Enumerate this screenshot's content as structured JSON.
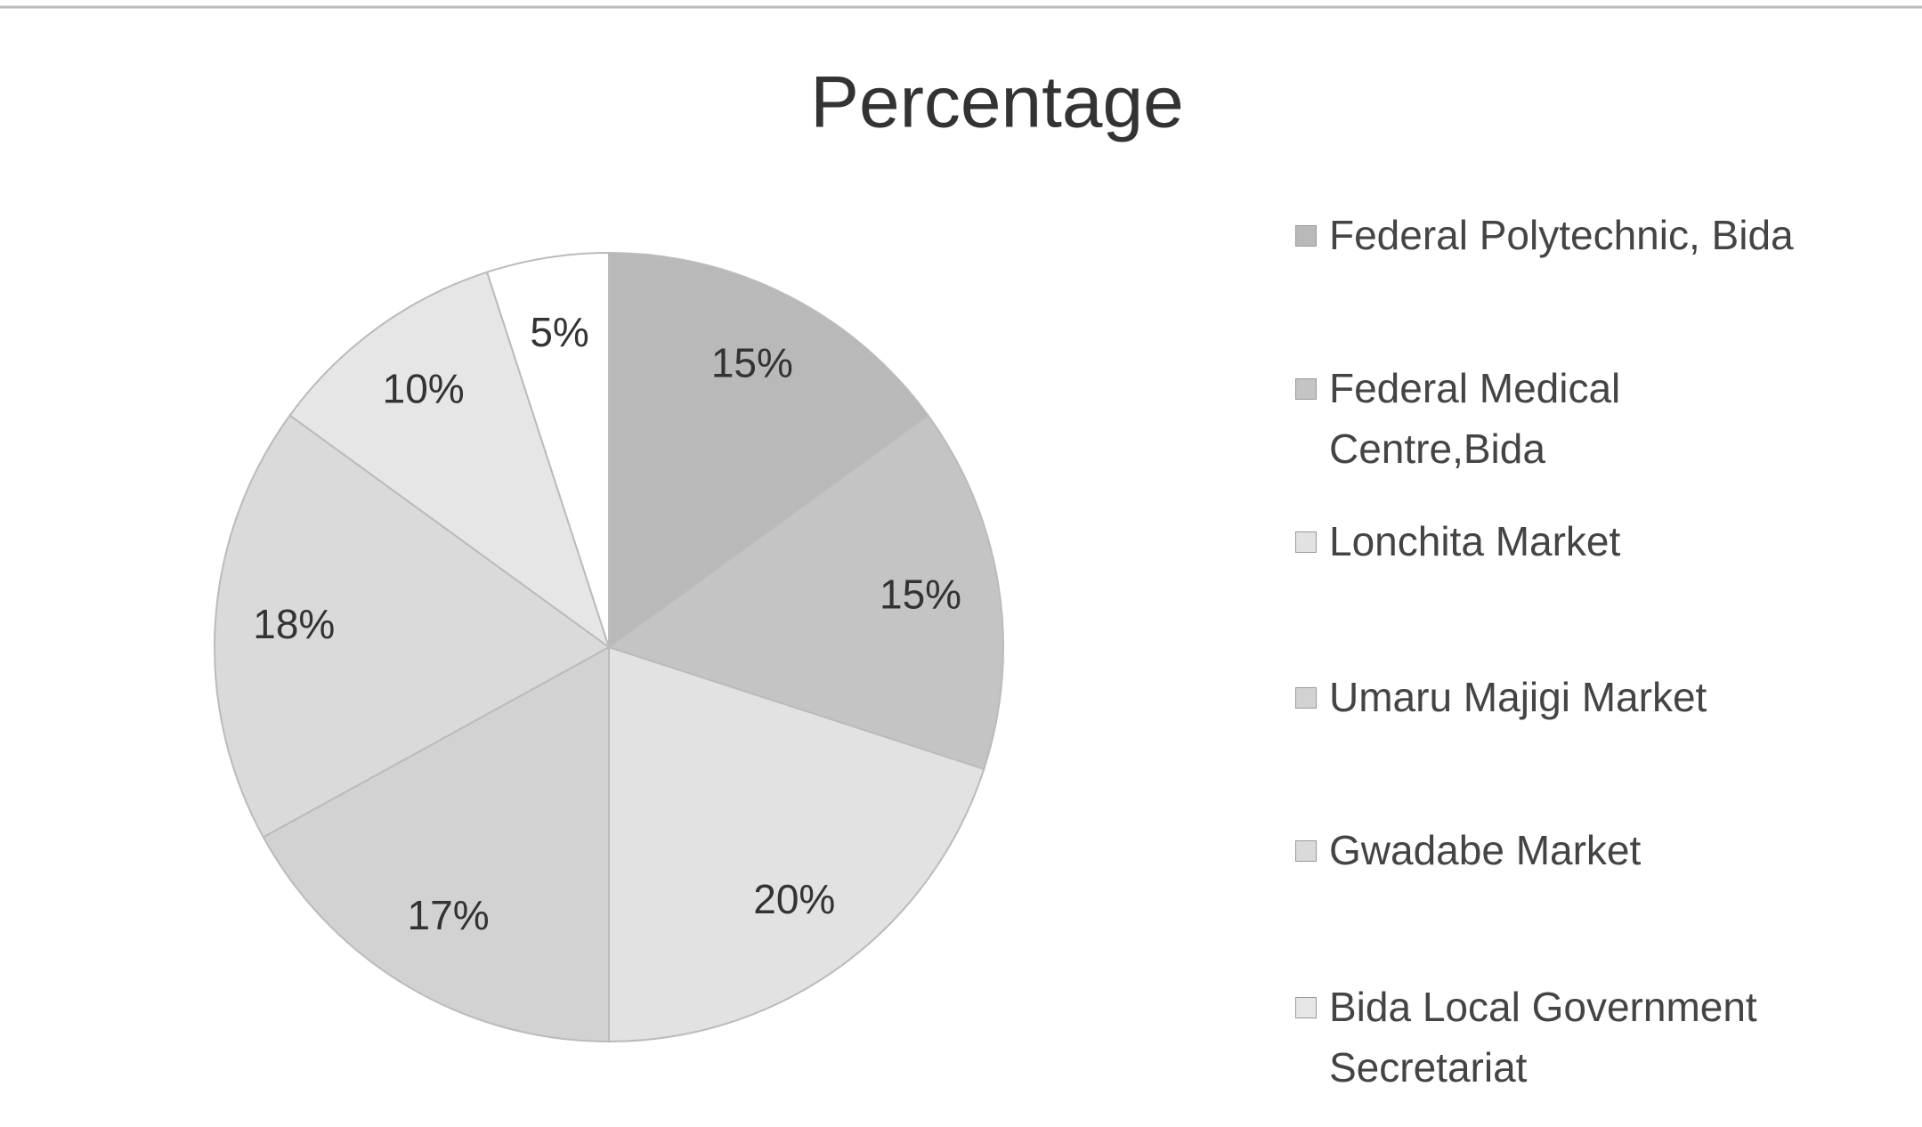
{
  "chart_data": {
    "type": "pie",
    "title": "Percentage",
    "categories": [
      "Federal Polytechnic, Bida",
      "Federal Medical Centre,Bida",
      "Lonchita Market",
      "Umaru Majigi Market",
      "Gwadabe Market",
      "Bida Local Government Secretariat",
      null
    ],
    "values": [
      15,
      15,
      20,
      17,
      18,
      10,
      5
    ],
    "value_labels": [
      "15%",
      "15%",
      "20%",
      "17%",
      "18%",
      "10%",
      "5%"
    ],
    "colors": [
      "#b9b9b9",
      "#c4c4c4",
      "#e2e2e2",
      "#d2d2d2",
      "#dadada",
      "#e6e6e6",
      "#ffffff"
    ],
    "legend": "right"
  }
}
